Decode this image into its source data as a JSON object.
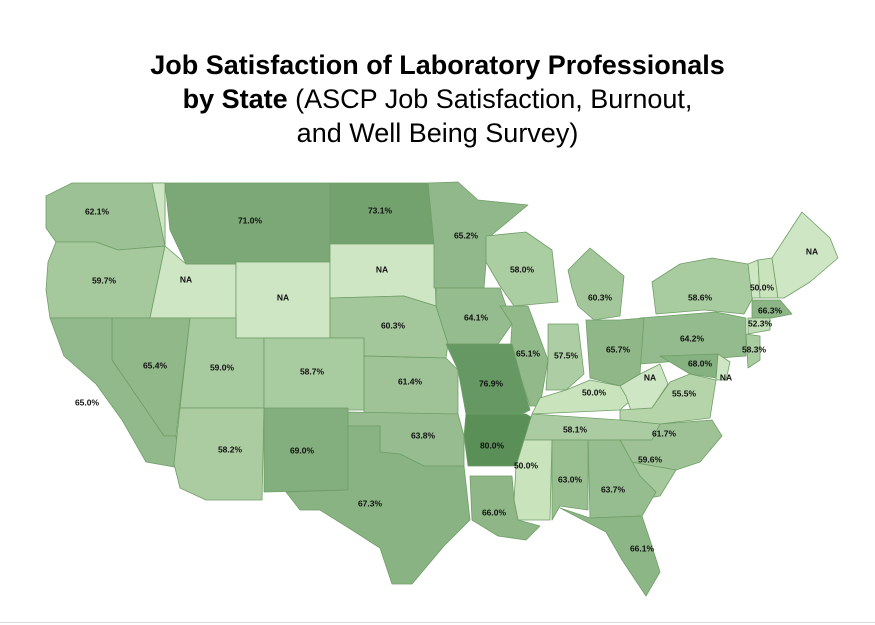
{
  "title": {
    "bold_line1": "Job Satisfaction of Laboratory Professionals",
    "bold_line2": "by State",
    "normal_line2": " (ASCP Job Satisfaction, Burnout,",
    "normal_line3": "and Well Being Survey)"
  },
  "map": {
    "colors": {
      "low": "#c9e3bd",
      "high": "#5a8f58",
      "na": "#cfe6c4"
    },
    "states": [
      {
        "id": "WA",
        "label": "62.1%",
        "value": 62.1
      },
      {
        "id": "OR",
        "label": "59.7%",
        "value": 59.7
      },
      {
        "id": "ID",
        "label": "NA",
        "value": null
      },
      {
        "id": "MT",
        "label": "71.0%",
        "value": 71.0
      },
      {
        "id": "ND",
        "label": "73.1%",
        "value": 73.1
      },
      {
        "id": "WY",
        "label": "NA",
        "value": null
      },
      {
        "id": "SD",
        "label": "NA",
        "value": null
      },
      {
        "id": "MN",
        "label": "65.2%",
        "value": 65.2
      },
      {
        "id": "WI",
        "label": "58.0%",
        "value": 58.0
      },
      {
        "id": "MI",
        "label": "60.3%",
        "value": 60.3
      },
      {
        "id": "NY",
        "label": "58.6%",
        "value": 58.6
      },
      {
        "id": "VT",
        "label": "",
        "value": null
      },
      {
        "id": "NH",
        "label": "50.0%",
        "value": 50.0
      },
      {
        "id": "ME",
        "label": "NA",
        "value": null
      },
      {
        "id": "MA",
        "label": "66.3%",
        "value": 66.3
      },
      {
        "id": "CT",
        "label": "52.3%",
        "value": 52.3
      },
      {
        "id": "NJ",
        "label": "58.3%",
        "value": 58.3
      },
      {
        "id": "PA",
        "label": "64.2%",
        "value": 64.2
      },
      {
        "id": "NE",
        "label": "60.3%",
        "value": 60.3
      },
      {
        "id": "IA",
        "label": "64.1%",
        "value": 64.1
      },
      {
        "id": "IL",
        "label": "65.1%",
        "value": 65.1
      },
      {
        "id": "IN",
        "label": "57.5%",
        "value": 57.5
      },
      {
        "id": "OH",
        "label": "65.7%",
        "value": 65.7
      },
      {
        "id": "NV",
        "label": "65.4%",
        "value": 65.4
      },
      {
        "id": "UT",
        "label": "59.0%",
        "value": 59.0
      },
      {
        "id": "CO",
        "label": "58.7%",
        "value": 58.7
      },
      {
        "id": "KS",
        "label": "61.4%",
        "value": 61.4
      },
      {
        "id": "MO",
        "label": "76.9%",
        "value": 76.9
      },
      {
        "id": "KY",
        "label": "50.0%",
        "value": 50.0
      },
      {
        "id": "WV",
        "label": "NA",
        "value": null
      },
      {
        "id": "MD",
        "label": "68.0%",
        "value": 68.0
      },
      {
        "id": "DE",
        "label": "NA",
        "value": null
      },
      {
        "id": "VA",
        "label": "55.5%",
        "value": 55.5
      },
      {
        "id": "CA",
        "label": "65.0%",
        "value": 65.0
      },
      {
        "id": "AZ",
        "label": "58.2%",
        "value": 58.2
      },
      {
        "id": "NM",
        "label": "69.0%",
        "value": 69.0
      },
      {
        "id": "OK",
        "label": "63.8%",
        "value": 63.8
      },
      {
        "id": "AR",
        "label": "80.0%",
        "value": 80.0
      },
      {
        "id": "TN",
        "label": "58.1%",
        "value": 58.1
      },
      {
        "id": "NC",
        "label": "61.7%",
        "value": 61.7
      },
      {
        "id": "SC",
        "label": "59.6%",
        "value": 59.6
      },
      {
        "id": "MS",
        "label": "50.0%",
        "value": 50.0
      },
      {
        "id": "AL",
        "label": "63.0%",
        "value": 63.0
      },
      {
        "id": "GA",
        "label": "63.7%",
        "value": 63.7
      },
      {
        "id": "TX",
        "label": "67.3%",
        "value": 67.3
      },
      {
        "id": "LA",
        "label": "66.0%",
        "value": 66.0
      },
      {
        "id": "FL",
        "label": "66.1%",
        "value": 66.1
      }
    ]
  }
}
